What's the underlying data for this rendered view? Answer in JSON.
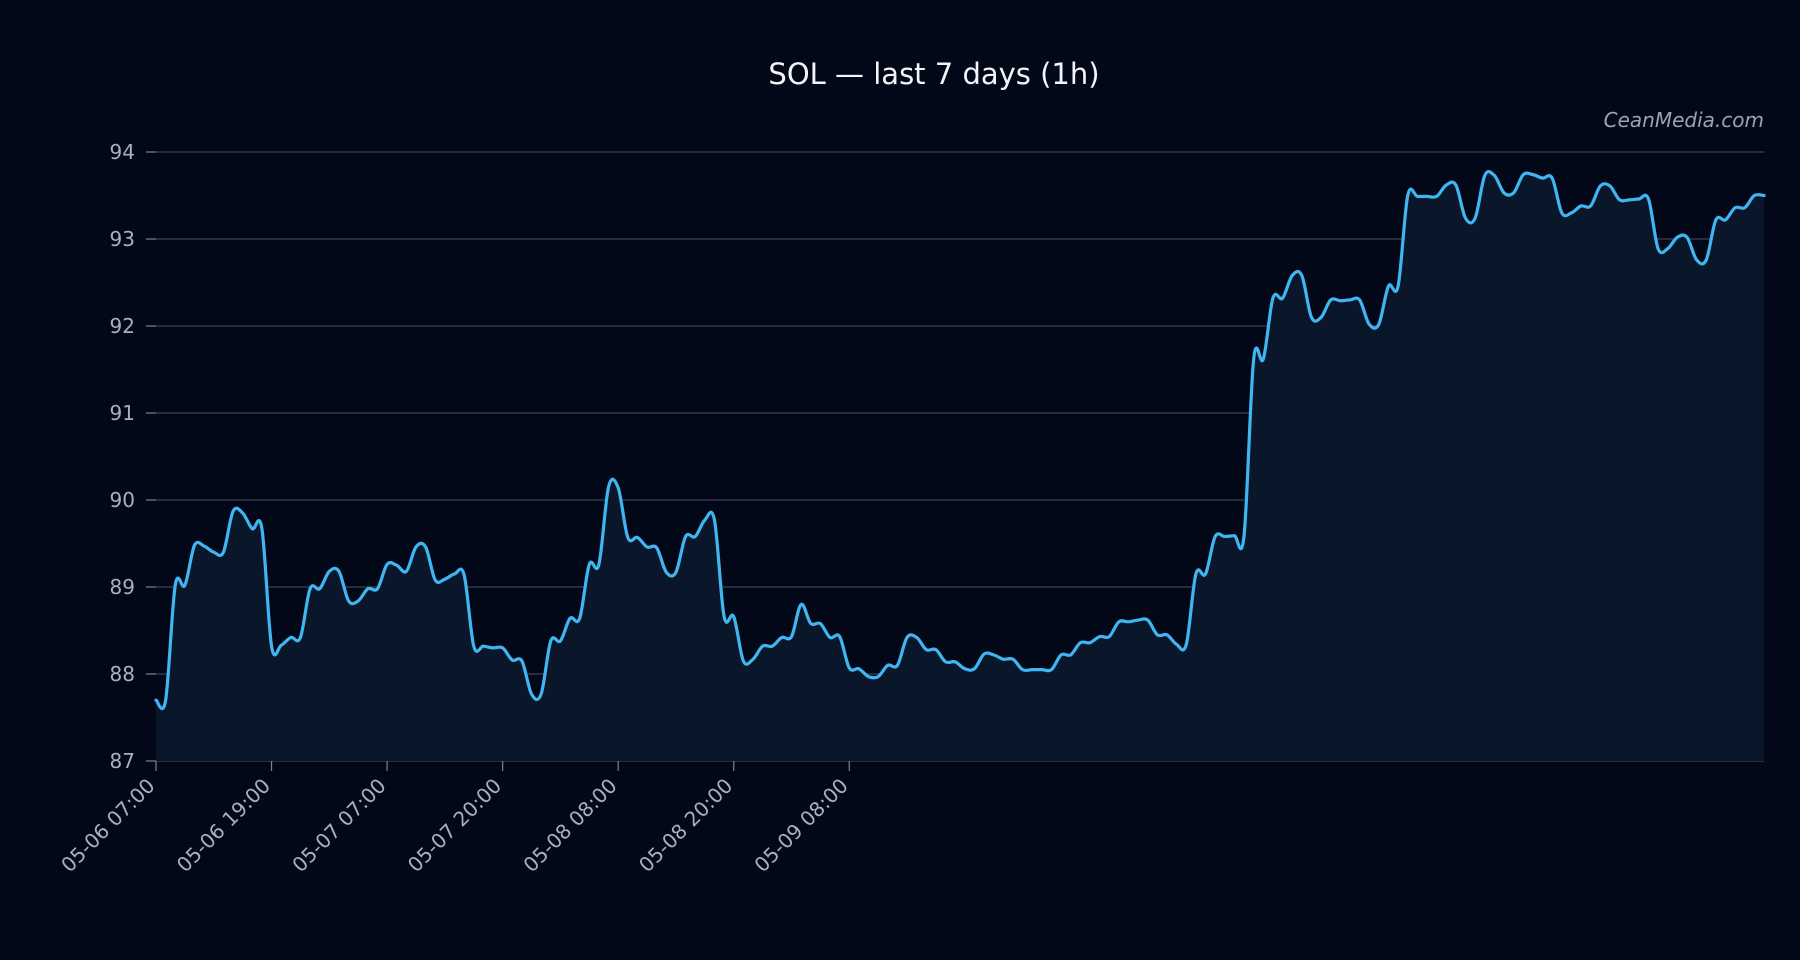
{
  "chart_data": {
    "type": "area",
    "title": "SOL — last 7 days (1h)",
    "watermark": "CeanMedia.com",
    "xlabel": "",
    "ylabel": "",
    "ylim": [
      87,
      94
    ],
    "yticks": [
      87,
      88,
      89,
      90,
      91,
      92,
      93,
      94
    ],
    "xticks": [
      "05-06 07:00",
      "05-06 19:00",
      "05-07 07:00",
      "05-07 20:00",
      "05-08 08:00",
      "05-08 20:00",
      "05-09 08:00"
    ],
    "grid": true,
    "colors": {
      "background": "#030818",
      "line": "#3fb6f2",
      "fill": "#0a1629",
      "grid": "#3a4254"
    },
    "series": [
      {
        "values": [
          87.7,
          87.7,
          89.02,
          89.02,
          89.48,
          89.47,
          89.4,
          89.4,
          89.87,
          89.85,
          89.67,
          89.67,
          88.32,
          88.33,
          88.42,
          88.42,
          88.98,
          88.98,
          89.18,
          89.18,
          88.84,
          88.84,
          88.98,
          88.98,
          89.26,
          89.25,
          89.18,
          89.46,
          89.46,
          89.08,
          89.09,
          89.15,
          89.14,
          88.32,
          88.32,
          88.3,
          88.3,
          88.16,
          88.15,
          87.77,
          87.77,
          88.38,
          88.38,
          88.64,
          88.64,
          89.26,
          89.26,
          90.15,
          90.14,
          89.57,
          89.57,
          89.46,
          89.45,
          89.17,
          89.17,
          89.58,
          89.58,
          89.77,
          89.77,
          88.66,
          88.66,
          88.15,
          88.17,
          88.32,
          88.32,
          88.42,
          88.43,
          88.8,
          88.58,
          88.58,
          88.42,
          88.43,
          88.07,
          88.06,
          87.97,
          87.97,
          88.1,
          88.1,
          88.42,
          88.42,
          88.28,
          88.28,
          88.14,
          88.14,
          88.06,
          88.06,
          88.23,
          88.22,
          88.17,
          88.17,
          88.05,
          88.05,
          88.05,
          88.05,
          88.22,
          88.22,
          88.36,
          88.36,
          88.43,
          88.43,
          88.6,
          88.6,
          88.62,
          88.62,
          88.45,
          88.45,
          88.34,
          88.34,
          89.15,
          89.15,
          89.58,
          89.58,
          89.59,
          89.59,
          91.62,
          91.62,
          92.32,
          92.32,
          92.58,
          92.58,
          92.1,
          92.1,
          92.3,
          92.29,
          92.3,
          92.3,
          92.02,
          92.02,
          92.46,
          92.46,
          93.5,
          93.49,
          93.49,
          93.49,
          93.62,
          93.62,
          93.24,
          93.24,
          93.73,
          93.73,
          93.53,
          93.53,
          93.74,
          93.74,
          93.7,
          93.7,
          93.3,
          93.3,
          93.38,
          93.38,
          93.61,
          93.61,
          93.45,
          93.45,
          93.46,
          93.46,
          92.89,
          92.89,
          93.02,
          93.02,
          92.76,
          92.76,
          93.22,
          93.22,
          93.36,
          93.36,
          93.5,
          93.5
        ]
      }
    ]
  }
}
